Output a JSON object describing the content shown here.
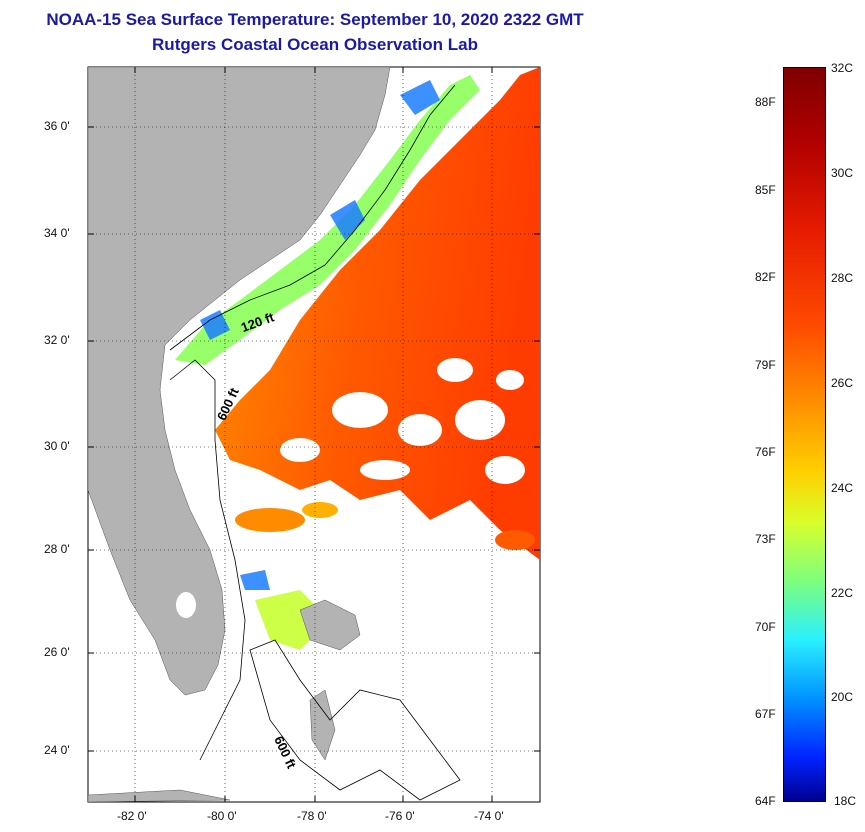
{
  "header": {
    "title": "NOAA-15 Sea Surface Temperature:  September 10, 2020 2322 GMT",
    "subtitle": "Rutgers Coastal Ocean Observation Lab"
  },
  "map": {
    "lat_labels": [
      "36 0'",
      "34 0'",
      "32 0'",
      "30 0'",
      "28 0'",
      "26 0'",
      "24 0'"
    ],
    "lon_labels": [
      "-82 0'",
      "-80 0'",
      "-78 0'",
      "-76 0'",
      "-74 0'"
    ],
    "contour_labels": [
      "120 ft",
      "600 ft",
      "600 ft"
    ]
  },
  "colorbar": {
    "fahrenheit": [
      "88F",
      "85F",
      "82F",
      "79F",
      "76F",
      "73F",
      "70F",
      "67F",
      "64F"
    ],
    "celsius": [
      "32C",
      "30C",
      "28C",
      "26C",
      "24C",
      "22C",
      "20C",
      "18C"
    ],
    "colors": {
      "hot": "#7f0000",
      "warm": "#ff4a00",
      "mid": "#ffcf00",
      "cool": "#2af0ff",
      "cold": "#00008f",
      "land": "#b3b3b3",
      "title": "#1a1aa6"
    }
  }
}
